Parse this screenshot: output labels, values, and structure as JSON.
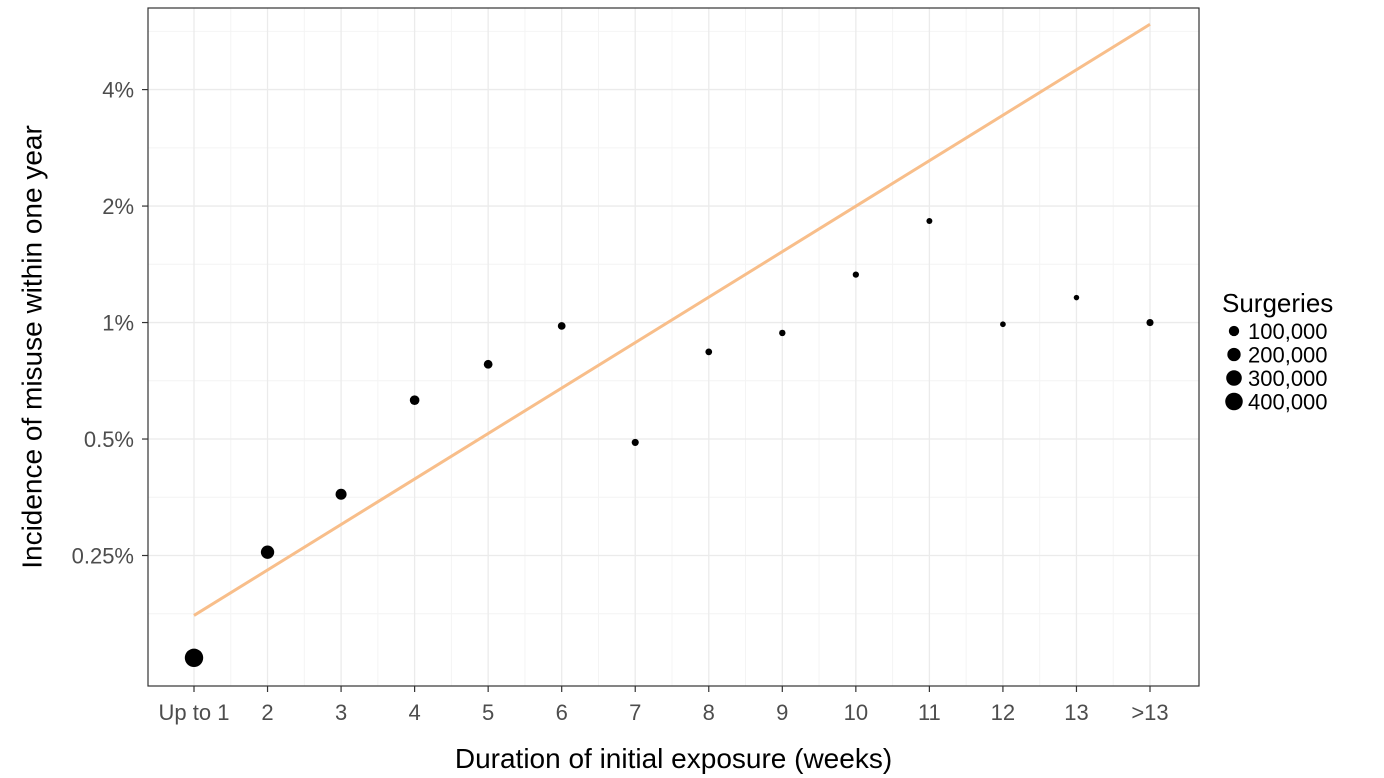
{
  "chart_data": {
    "type": "scatter",
    "xlabel": "Duration of initial exposure (weeks)",
    "ylabel": "Incidence of misuse within one year",
    "categories": [
      "Up to 1",
      "2",
      "3",
      "4",
      "5",
      "6",
      "7",
      "8",
      "9",
      "10",
      "11",
      "12",
      "13",
      ">13"
    ],
    "y_scale": "log2",
    "y_ticks": [
      {
        "value": 0.25,
        "label": "0.25%"
      },
      {
        "value": 0.5,
        "label": "0.5%"
      },
      {
        "value": 1,
        "label": "1%"
      },
      {
        "value": 2,
        "label": "2%"
      },
      {
        "value": 4,
        "label": "4%"
      }
    ],
    "ylim": [
      0.115,
      6.5
    ],
    "points": [
      {
        "x": "Up to 1",
        "y": 0.136,
        "surgeries": 450000
      },
      {
        "x": "2",
        "y": 0.255,
        "surgeries": 200000
      },
      {
        "x": "3",
        "y": 0.36,
        "surgeries": 120000
      },
      {
        "x": "4",
        "y": 0.63,
        "surgeries": 80000
      },
      {
        "x": "5",
        "y": 0.78,
        "surgeries": 60000
      },
      {
        "x": "6",
        "y": 0.98,
        "surgeries": 40000
      },
      {
        "x": "7",
        "y": 0.49,
        "surgeries": 30000
      },
      {
        "x": "8",
        "y": 0.84,
        "surgeries": 25000
      },
      {
        "x": "9",
        "y": 0.94,
        "surgeries": 20000
      },
      {
        "x": "10",
        "y": 1.33,
        "surgeries": 18000
      },
      {
        "x": "11",
        "y": 1.83,
        "surgeries": 15000
      },
      {
        "x": "12",
        "y": 0.99,
        "surgeries": 12000
      },
      {
        "x": "13",
        "y": 1.16,
        "surgeries": 10000
      },
      {
        "x": ">13",
        "y": 1.0,
        "surgeries": 30000
      }
    ],
    "trend_line": {
      "color": "#F8BE8A",
      "start": {
        "x": "Up to 1",
        "y": 0.175
      },
      "end": {
        "x": ">13",
        "y": 5.9
      }
    },
    "legend": {
      "title": "Surgeries",
      "position": "right",
      "entries": [
        {
          "label": "100,000",
          "surgeries": 100000
        },
        {
          "label": "200,000",
          "surgeries": 200000
        },
        {
          "label": "300,000",
          "surgeries": 300000
        },
        {
          "label": "400,000",
          "surgeries": 400000
        }
      ]
    },
    "grid": true,
    "colors": {
      "points": "#000000",
      "grid": "#EBEBEB",
      "panel_border": "#333333"
    }
  }
}
